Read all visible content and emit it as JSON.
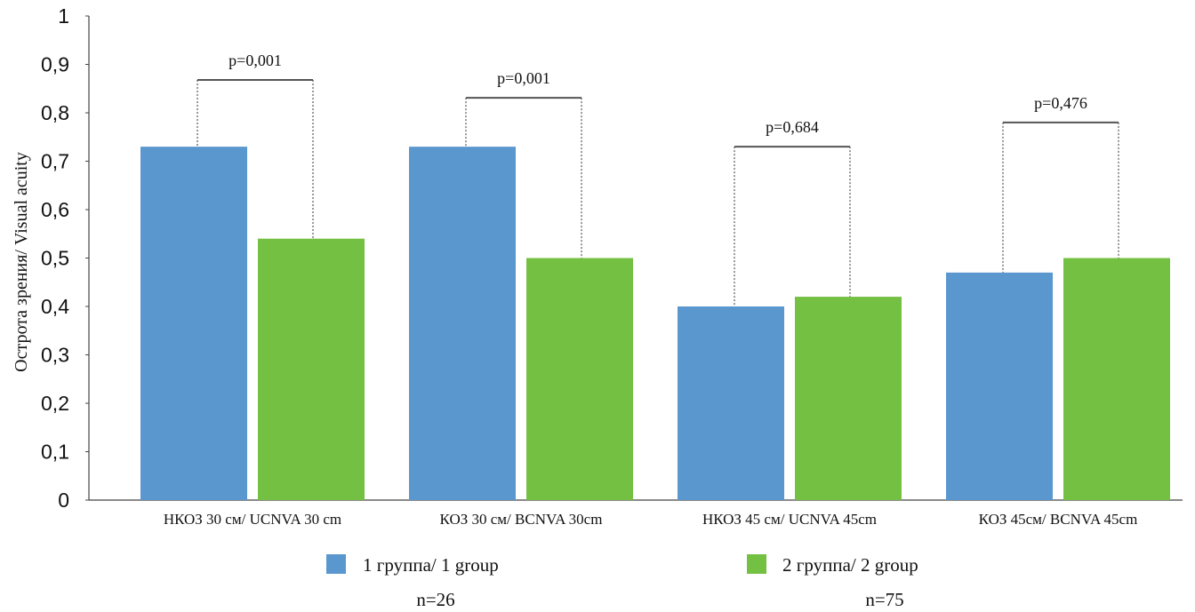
{
  "chart_data": {
    "type": "bar",
    "title": "",
    "xlabel": "",
    "ylabel": "Острота зрения/ Visual acuity",
    "ylim": [
      0,
      1
    ],
    "yticks": [
      "0",
      "0,1",
      "0,2",
      "0,3",
      "0,4",
      "0,5",
      "0,6",
      "0,7",
      "0,8",
      "0,9",
      "1"
    ],
    "grid": false,
    "categories": [
      "НКОЗ 30 см/ UCNVA 30 cm",
      "КОЗ 30 см/ BCNVA 30cm",
      "НКОЗ 45 см/ UCNVA 45cm",
      "КОЗ 45см/ BCNVA 45cm"
    ],
    "series": [
      {
        "name": "1 группа/ 1 group",
        "n_label": "n=26",
        "color": "#5b97cf",
        "values": [
          0.73,
          0.73,
          0.4,
          0.47
        ]
      },
      {
        "name": "2 группа/ 2 group",
        "n_label": "n=75",
        "color": "#74c043",
        "values": [
          0.54,
          0.5,
          0.42,
          0.5
        ]
      }
    ],
    "annotations": [
      {
        "text": "p=0,001",
        "bracket_level": 0.868
      },
      {
        "text": "p=0,001",
        "bracket_level": 0.831
      },
      {
        "text": "p=0,684",
        "bracket_level": 0.73
      },
      {
        "text": "p=0,476",
        "bracket_level": 0.78
      }
    ],
    "legend_position": "bottom"
  }
}
